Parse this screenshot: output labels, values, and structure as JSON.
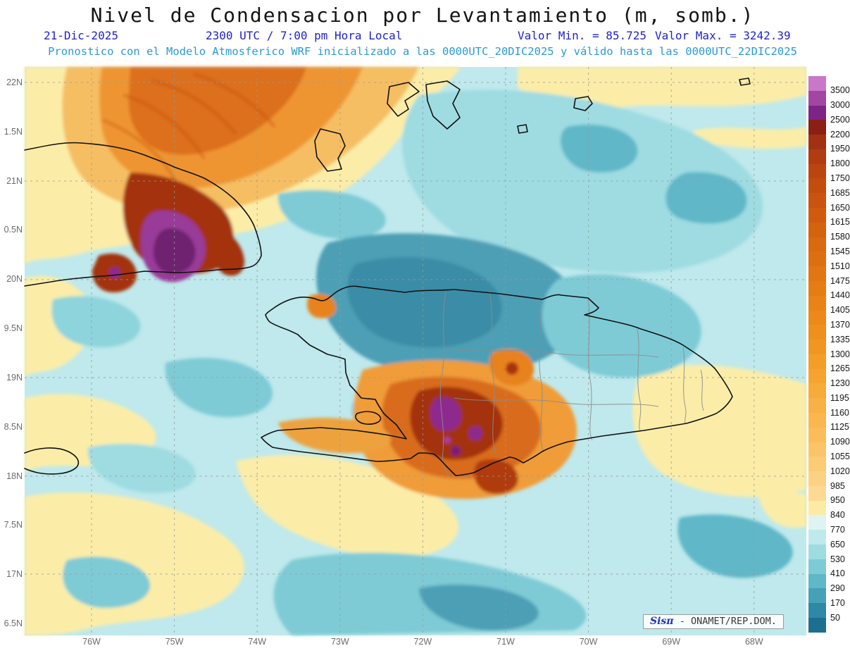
{
  "title": "Nivel de Condensacion por Levantamiento (m, somb.)",
  "header": {
    "date": "21-Dic-2025",
    "time_local": "2300 UTC / 7:00 pm Hora Local",
    "min_label": "Valor Min. = 85.725",
    "max_label": "Valor Max. = 3242.39",
    "model_line": "Pronostico con el Modelo Atmosferico WRF inicializado a las 0000UTC_20DIC2025 y válido hasta las  0000UTC_22DIC2025"
  },
  "axes": {
    "y_ticks": [
      "22N",
      "1.5N",
      "21N",
      "0.5N",
      "20N",
      "9.5N",
      "19N",
      "8.5N",
      "18N",
      "7.5N",
      "17N",
      "6.5N"
    ],
    "x_ticks": [
      "76W",
      "75W",
      "74W",
      "73W",
      "72W",
      "71W",
      "70W",
      "69W",
      "68W"
    ]
  },
  "colorbar": {
    "unit": "m",
    "labels": [
      "3500",
      "3000",
      "2500",
      "2200",
      "1950",
      "1800",
      "1750",
      "1685",
      "1650",
      "1615",
      "1580",
      "1545",
      "1510",
      "1475",
      "1440",
      "1405",
      "1370",
      "1335",
      "1300",
      "1265",
      "1230",
      "1195",
      "1160",
      "1125",
      "1090",
      "1055",
      "1020",
      "985",
      "950",
      "840",
      "770",
      "650",
      "530",
      "410",
      "290",
      "170",
      "50"
    ],
    "segment_colors_top_to_bottom": [
      "#C977C9",
      "#A346A3",
      "#7E2486",
      "#892013",
      "#A03212",
      "#B03C10",
      "#BB4510",
      "#C34D0F",
      "#CA540F",
      "#D05B0F",
      "#D5620F",
      "#DA690F",
      "#DE6F10",
      "#E27612",
      "#E67C14",
      "#E98317",
      "#EC891A",
      "#EF901E",
      "#F29623",
      "#F49D29",
      "#F6A331",
      "#F8AA3A",
      "#F9B044",
      "#FAB74F",
      "#FBBD5B",
      "#FCC468",
      "#FDCA75",
      "#FDD184",
      "#FED993",
      "#FCEBA4",
      "#DFF4F1",
      "#BFE9EC",
      "#9EDCE2",
      "#7ECBD6",
      "#5FB7C8",
      "#45A1B8",
      "#2F88A5",
      "#1E6E91"
    ]
  },
  "accents": {
    "header_blue": "#2222cc",
    "model_line_blue": "#2a9ad4",
    "sea_base": "#BFE9EC",
    "land_warm_yellow": "#FBEDA8"
  },
  "watermark": {
    "brand": "Sisπ",
    "text": " - ONAMET/REP.DOM."
  }
}
